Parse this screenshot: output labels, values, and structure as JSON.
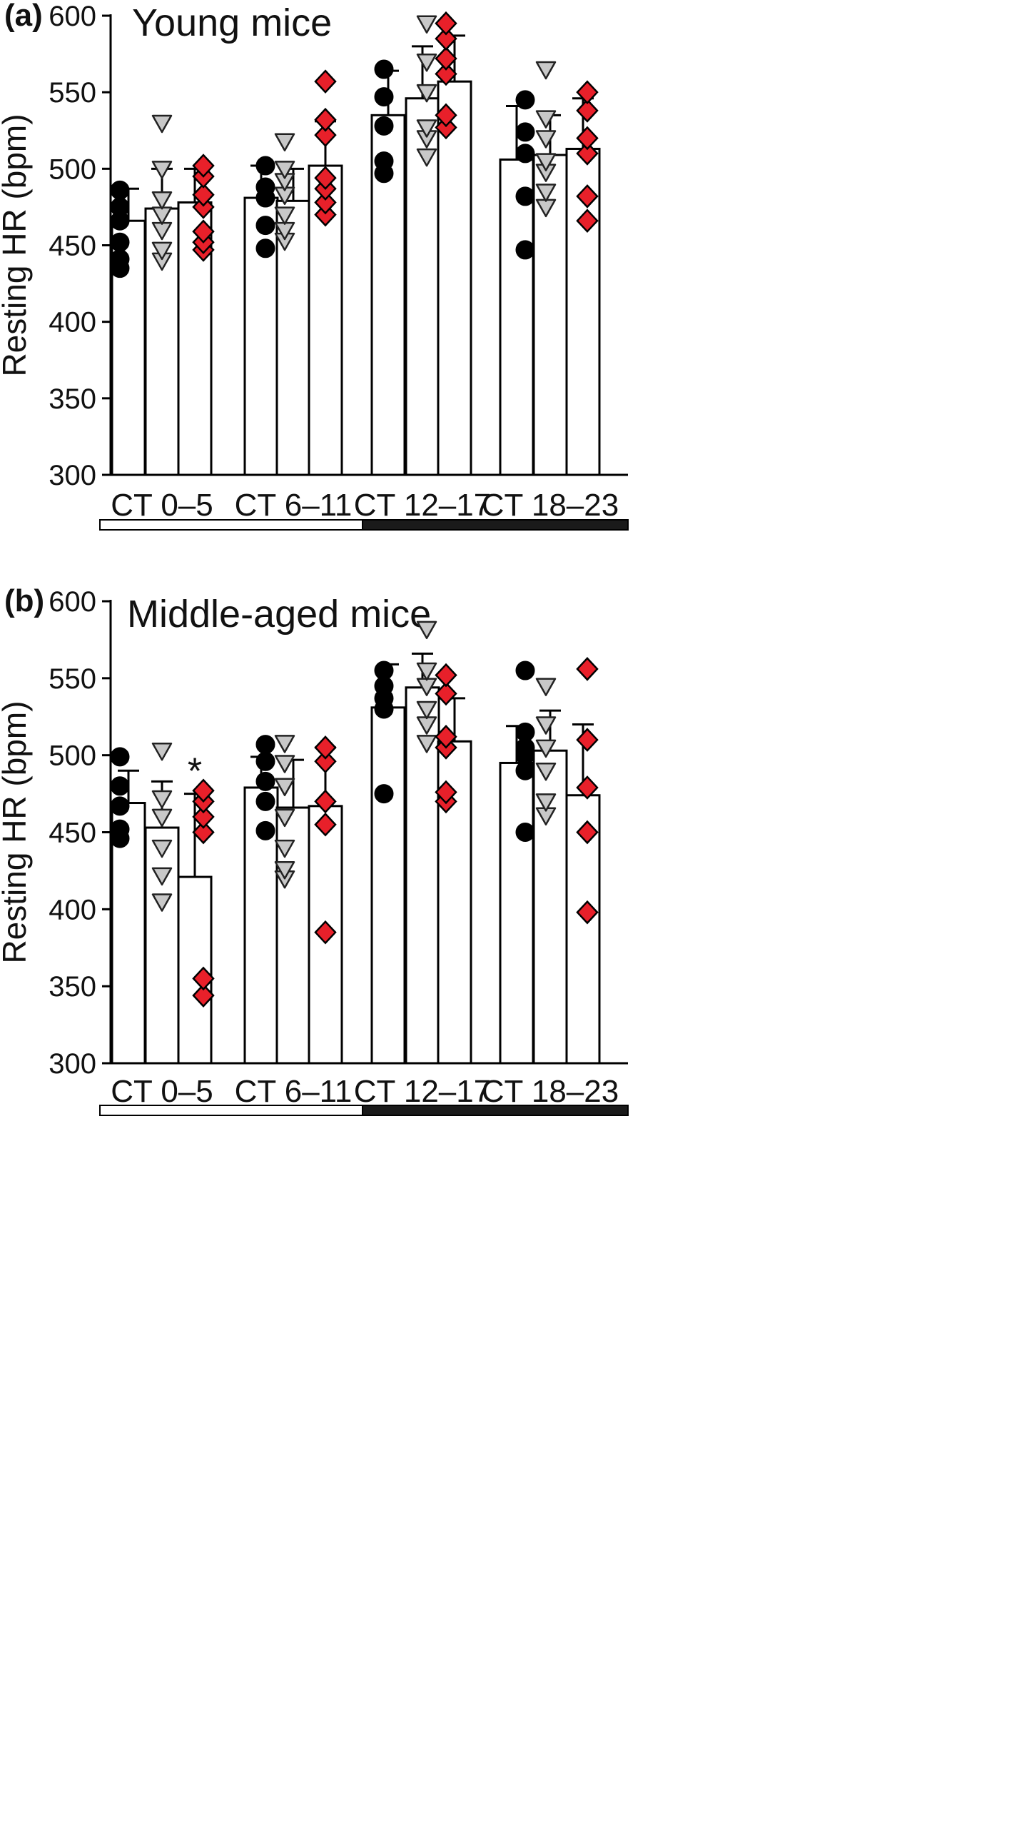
{
  "chart_data": [
    {
      "type": "bar",
      "panel_label": "(a)",
      "title": "Young mice",
      "ylabel": "Resting HR (bpm)",
      "ylim": [
        300,
        600
      ],
      "yticks": [
        300,
        350,
        400,
        450,
        500,
        550,
        600
      ],
      "categories": [
        "CT 0–5",
        "CT 6–11",
        "CT 12–17",
        "CT 18–23"
      ],
      "light_dark_bar": [
        "light",
        "light",
        "dark",
        "dark"
      ],
      "series": [
        {
          "marker": "circle",
          "color": "#000000",
          "values": [
            466,
            481,
            535,
            506
          ],
          "errors": [
            21,
            21,
            29,
            35
          ],
          "points": [
            [
              435,
              441,
              452,
              466,
              475,
              486
            ],
            [
              448,
              463,
              481,
              488,
              502
            ],
            [
              497,
              505,
              528,
              547,
              565
            ],
            [
              447,
              482,
              510,
              524,
              545
            ]
          ]
        },
        {
          "marker": "triangle-down",
          "color": "#c8c8c8",
          "values": [
            474,
            479,
            546,
            509
          ],
          "errors": [
            26,
            21,
            34,
            26
          ],
          "points": [
            [
              440,
              447,
              460,
              470,
              480,
              500,
              530
            ],
            [
              453,
              460,
              470,
              483,
              492,
              500,
              518
            ],
            [
              508,
              520,
              527,
              550,
              570,
              595
            ],
            [
              475,
              485,
              498,
              505,
              520,
              533,
              565
            ]
          ]
        },
        {
          "marker": "diamond",
          "color": "#e8202a",
          "values": [
            478,
            502,
            557,
            513
          ],
          "errors": [
            22,
            29,
            30,
            33
          ],
          "points": [
            [
              447,
              452,
              459,
              475,
              483,
              495,
              502
            ],
            [
              470,
              478,
              487,
              494,
              522,
              532,
              557
            ],
            [
              527,
              535,
              562,
              572,
              585,
              595
            ],
            [
              466,
              482,
              510,
              520,
              538,
              550
            ]
          ]
        }
      ],
      "annotations": []
    },
    {
      "type": "bar",
      "panel_label": "(b)",
      "title": "Middle-aged mice",
      "ylabel": "Resting HR (bpm)",
      "ylim": [
        300,
        600
      ],
      "yticks": [
        300,
        350,
        400,
        450,
        500,
        550,
        600
      ],
      "categories": [
        "CT 0–5",
        "CT 6–11",
        "CT 12–17",
        "CT 18–23"
      ],
      "light_dark_bar": [
        "light",
        "light",
        "dark",
        "dark"
      ],
      "series": [
        {
          "marker": "circle",
          "color": "#000000",
          "values": [
            469,
            479,
            531,
            495
          ],
          "errors": [
            21,
            20,
            28,
            24
          ],
          "points": [
            [
              446,
              452,
              467,
              480,
              499
            ],
            [
              451,
              470,
              483,
              496,
              507
            ],
            [
              475,
              530,
              537,
              545,
              555
            ],
            [
              450,
              490,
              500,
              505,
              515,
              555
            ]
          ]
        },
        {
          "marker": "triangle-down",
          "color": "#c8c8c8",
          "values": [
            453,
            466,
            544,
            503
          ],
          "errors": [
            30,
            31,
            22,
            26
          ],
          "points": [
            [
              405,
              422,
              440,
              460,
              472,
              503
            ],
            [
              420,
              426,
              440,
              460,
              480,
              495,
              508
            ],
            [
              508,
              520,
              530,
              545,
              555,
              582
            ],
            [
              461,
              470,
              490,
              505,
              520,
              545
            ]
          ]
        },
        {
          "marker": "diamond",
          "color": "#e8202a",
          "values": [
            421,
            467,
            509,
            474
          ],
          "errors": [
            54,
            38,
            28,
            46
          ],
          "points": [
            [
              344,
              355,
              450,
              460,
              470,
              477
            ],
            [
              385,
              455,
              470,
              496,
              505
            ],
            [
              470,
              476,
              505,
              512,
              540,
              552
            ],
            [
              398,
              450,
              479,
              510,
              556
            ]
          ]
        }
      ],
      "annotations": [
        {
          "category": 0,
          "series": 2,
          "text": "*"
        }
      ]
    }
  ]
}
